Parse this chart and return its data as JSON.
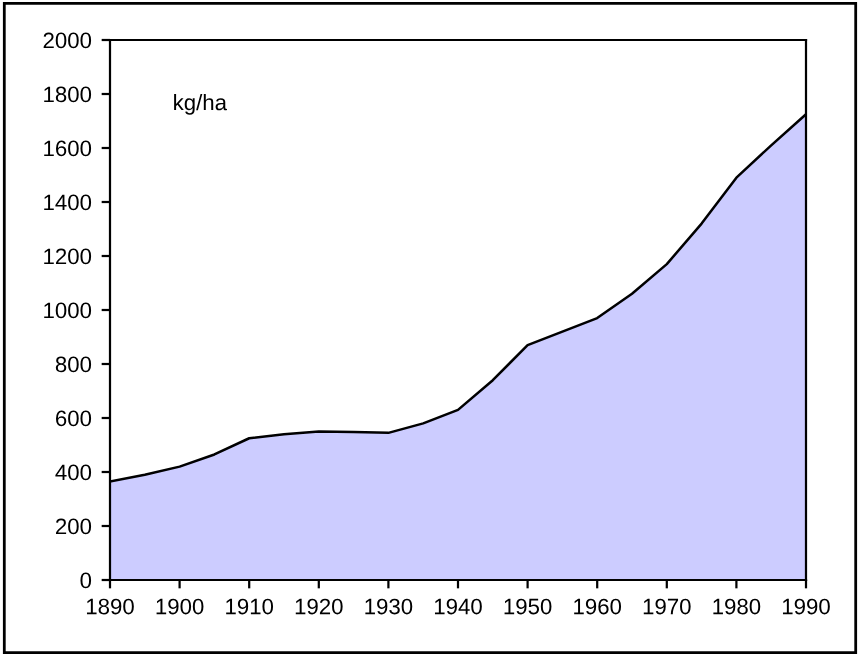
{
  "chart_data": {
    "type": "area",
    "x": [
      1890,
      1895,
      1900,
      1905,
      1910,
      1915,
      1920,
      1925,
      1930,
      1935,
      1940,
      1945,
      1950,
      1955,
      1960,
      1965,
      1970,
      1975,
      1980,
      1985,
      1990
    ],
    "series": [
      {
        "color": "#ccccff",
        "values": [
          365,
          390,
          420,
          465,
          525,
          540,
          550,
          548,
          545,
          580,
          630,
          740,
          870,
          920,
          970,
          1060,
          1170,
          1320,
          1490,
          1610,
          1725
        ]
      }
    ],
    "xlim": [
      1890,
      1990
    ],
    "xticks": [
      1890,
      1900,
      1910,
      1920,
      1930,
      1940,
      1950,
      1960,
      1970,
      1980,
      1990
    ],
    "ylim": [
      0,
      2000
    ],
    "yticks": [
      0,
      200,
      400,
      600,
      800,
      1000,
      1200,
      1400,
      1600,
      1800,
      2000
    ],
    "annotations": [
      "kg/ha"
    ],
    "grid": false,
    "legend": false
  }
}
